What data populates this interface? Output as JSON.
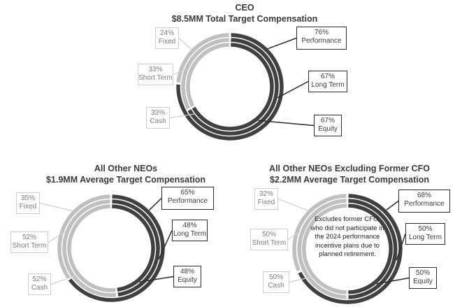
{
  "colors": {
    "fixed": "#bfbfbf",
    "variable": "#404040",
    "background": "#ffffff"
  },
  "chart_data": [
    {
      "type": "pie",
      "title": "CEO",
      "subtitle": "$8.5MM Total Target Compensation",
      "rings": [
        {
          "labels": [
            "Fixed",
            "Performance"
          ],
          "values": [
            24,
            76
          ]
        },
        {
          "labels": [
            "Short Term",
            "Long Term"
          ],
          "values": [
            33,
            67
          ]
        },
        {
          "labels": [
            "Cash",
            "Equity"
          ],
          "values": [
            33,
            67
          ]
        }
      ],
      "callouts": {
        "left": [
          {
            "pct": "24%",
            "label": "Fixed"
          },
          {
            "pct": "33%",
            "label": "Short Term"
          },
          {
            "pct": "33%",
            "label": "Cash"
          }
        ],
        "right": [
          {
            "pct": "76%",
            "label": "Performance"
          },
          {
            "pct": "67%",
            "label": "Long Term"
          },
          {
            "pct": "67%",
            "label": "Equity"
          }
        ]
      },
      "note": ""
    },
    {
      "type": "pie",
      "title": "All Other NEOs",
      "subtitle": "$1.9MM Average Target Compensation",
      "rings": [
        {
          "labels": [
            "Fixed",
            "Performance"
          ],
          "values": [
            35,
            65
          ]
        },
        {
          "labels": [
            "Short Term",
            "Long Term"
          ],
          "values": [
            52,
            48
          ]
        },
        {
          "labels": [
            "Cash",
            "Equity"
          ],
          "values": [
            52,
            48
          ]
        }
      ],
      "callouts": {
        "left": [
          {
            "pct": "35%",
            "label": "Fixed"
          },
          {
            "pct": "52%",
            "label": "Short Term"
          },
          {
            "pct": "52%",
            "label": "Cash"
          }
        ],
        "right": [
          {
            "pct": "65%",
            "label": "Performance"
          },
          {
            "pct": "48%",
            "label": "Long Term"
          },
          {
            "pct": "48%",
            "label": "Equity"
          }
        ]
      },
      "note": ""
    },
    {
      "type": "pie",
      "title": "All Other NEOs Excluding Former CFO",
      "subtitle": "$2.2MM Average Target Compensation",
      "rings": [
        {
          "labels": [
            "Fixed",
            "Performance"
          ],
          "values": [
            32,
            68
          ]
        },
        {
          "labels": [
            "Short Term",
            "Long Term"
          ],
          "values": [
            50,
            50
          ]
        },
        {
          "labels": [
            "Cash",
            "Equity"
          ],
          "values": [
            50,
            50
          ]
        }
      ],
      "callouts": {
        "left": [
          {
            "pct": "32%",
            "label": "Fixed"
          },
          {
            "pct": "50%",
            "label": "Short Term"
          },
          {
            "pct": "50%",
            "label": "Cash"
          }
        ],
        "right": [
          {
            "pct": "68%",
            "label": "Performance"
          },
          {
            "pct": "50%",
            "label": "Long Term"
          },
          {
            "pct": "50%",
            "label": "Equity"
          }
        ]
      },
      "note": "Excludes former CFO, who did not participate in the 2024 performance incentive plans due to planned retirement."
    }
  ]
}
